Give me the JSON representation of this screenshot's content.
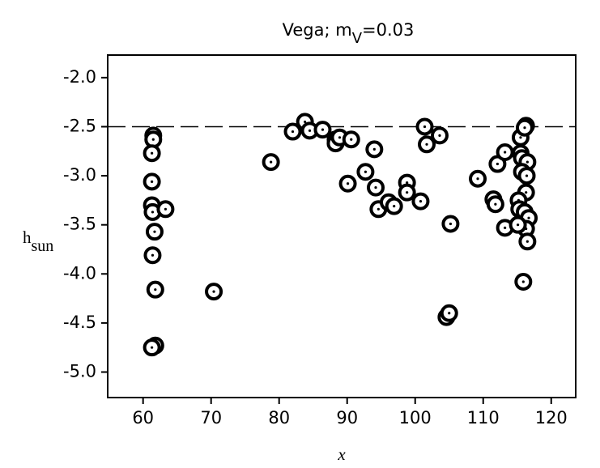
{
  "chart_data": {
    "type": "scatter",
    "title": {
      "text": "Vega; m",
      "sub": "V",
      "tail": "=0.03"
    },
    "xlabel": "x",
    "ylabel": {
      "text": "h",
      "sub": "sun"
    },
    "xlim": [
      54.8,
      123.6
    ],
    "ylim": [
      -5.26,
      -1.77
    ],
    "xticks": [
      60,
      70,
      80,
      90,
      100,
      110,
      120
    ],
    "yticks": [
      {
        "value": -2,
        "label": "-2.0"
      },
      -2.5,
      {
        "value": -3,
        "label": "-3.0"
      },
      -3.5,
      {
        "value": -4,
        "label": "-4.0"
      },
      -4.5,
      {
        "value": -5,
        "label": "-5.0"
      }
    ],
    "hline": -2.5,
    "color": "#000000",
    "x": [
      61.5,
      61.5,
      61.3,
      61.3,
      61.3,
      61.4,
      61.7,
      61.4,
      61.8,
      61.8,
      61.3,
      63.3,
      70.4,
      78.8,
      82.0,
      83.8,
      84.5,
      86.4,
      88.3,
      88.3,
      88.9,
      90.6,
      92.7,
      90.1,
      94.0,
      94.2,
      94.6,
      96.1,
      96.9,
      98.8,
      98.8,
      100.8,
      101.4,
      101.7,
      103.6,
      104.6,
      105.0,
      105.2,
      109.2,
      111.5,
      111.8,
      112.1,
      113.2,
      113.2,
      115.5,
      115.5,
      116.3,
      116.1,
      115.7,
      116.5,
      115.7,
      116.4,
      116.3,
      115.2,
      115.3,
      116.1,
      116.7,
      116.3,
      116.5,
      115.9,
      115.1
    ],
    "values": [
      -2.59,
      -2.63,
      -2.77,
      -3.06,
      -3.3,
      -3.37,
      -3.57,
      -3.81,
      -4.16,
      -4.73,
      -4.75,
      -3.34,
      -4.18,
      -2.86,
      -2.55,
      -2.45,
      -2.54,
      -2.53,
      -2.63,
      -2.67,
      -2.61,
      -2.63,
      -2.96,
      -3.08,
      -2.73,
      -3.12,
      -3.34,
      -3.27,
      -3.31,
      -3.07,
      -3.17,
      -3.26,
      -2.5,
      -2.68,
      -2.59,
      -4.44,
      -4.4,
      -3.49,
      -3.03,
      -3.24,
      -3.29,
      -2.88,
      -3.53,
      -2.76,
      -2.61,
      -2.77,
      -2.49,
      -2.51,
      -2.82,
      -2.86,
      -2.96,
      -3.0,
      -3.17,
      -3.25,
      -3.34,
      -3.37,
      -3.43,
      -3.54,
      -3.67,
      -4.08,
      -3.5
    ]
  }
}
